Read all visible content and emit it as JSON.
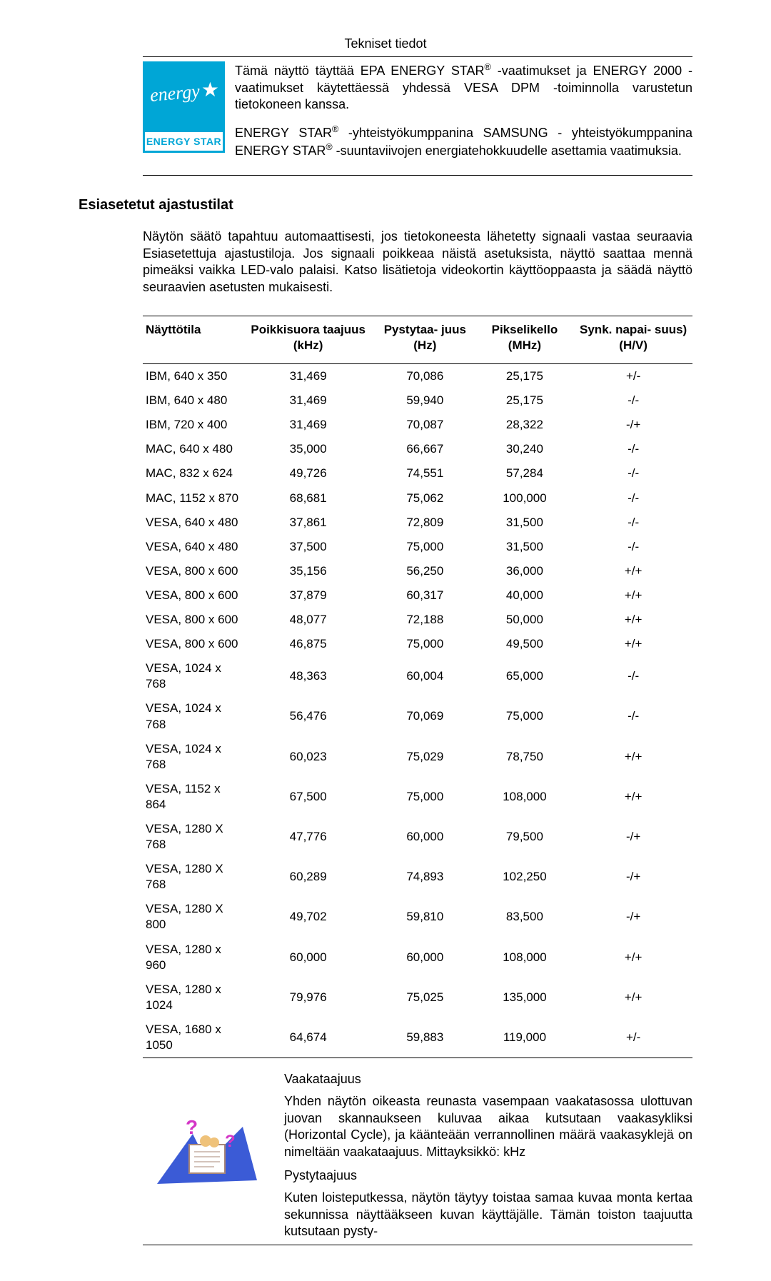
{
  "page_header": "Tekniset tiedot",
  "energy_logo": {
    "script": "energy",
    "band": "ENERGY STAR",
    "bg_color": "#00a6d6"
  },
  "top_paragraph_1": "Tämä näyttö täyttää EPA ENERGY STAR® -vaatimukset ja ENERGY 2000 -vaatimukset käytettäessä yhdessä VESA DPM -toiminnolla varustetun tietokoneen kanssa.",
  "top_paragraph_2": "ENERGY STAR® -yhteistyökumppanina SAMSUNG - yhteistyökumppanina ENERGY STAR® -suuntaviivojen energiatehokkuudelle asettamia vaatimuksia.",
  "section_heading": "Esiasetetut ajastustilat",
  "intro_text": "Näytön säätö tapahtuu automaattisesti, jos tietokoneesta lähetetty signaali vastaa seuraavia Esiasetettuja ajastustiloja. Jos signaali poikkeaa näistä asetuksista, näyttö saattaa mennä pimeäksi vaikka LED-valo palaisi. Katso lisätietoja videokortin käyttöoppaasta ja säädä näyttö seuraavien asetusten mukaisesti.",
  "timing_table": {
    "columns": [
      "Näyttötila",
      "Poikkisuora taajuus (kHz)",
      "Pystytaa- juus (Hz)",
      "Pikselikello (MHz)",
      "Synk. napai- suus) (H/V)"
    ],
    "rows": [
      [
        "IBM, 640 x 350",
        "31,469",
        "70,086",
        "25,175",
        "+/-"
      ],
      [
        "IBM, 640 x 480",
        "31,469",
        "59,940",
        "25,175",
        "-/-"
      ],
      [
        "IBM, 720 x 400",
        "31,469",
        "70,087",
        "28,322",
        "-/+"
      ],
      [
        "MAC, 640 x 480",
        "35,000",
        "66,667",
        "30,240",
        "-/-"
      ],
      [
        "MAC, 832 x 624",
        "49,726",
        "74,551",
        "57,284",
        "-/-"
      ],
      [
        "MAC, 1152 x 870",
        "68,681",
        "75,062",
        "100,000",
        "-/-"
      ],
      [
        "VESA, 640 x 480",
        "37,861",
        "72,809",
        "31,500",
        "-/-"
      ],
      [
        "VESA, 640 x 480",
        "37,500",
        "75,000",
        "31,500",
        "-/-"
      ],
      [
        "VESA, 800 x 600",
        "35,156",
        "56,250",
        "36,000",
        "+/+"
      ],
      [
        "VESA, 800 x 600",
        "37,879",
        "60,317",
        "40,000",
        "+/+"
      ],
      [
        "VESA, 800 x 600",
        "48,077",
        "72,188",
        "50,000",
        "+/+"
      ],
      [
        "VESA, 800 x 600",
        "46,875",
        "75,000",
        "49,500",
        "+/+"
      ],
      [
        "VESA, 1024 x 768",
        "48,363",
        "60,004",
        "65,000",
        "-/-"
      ],
      [
        "VESA, 1024 x 768",
        "56,476",
        "70,069",
        "75,000",
        "-/-"
      ],
      [
        "VESA, 1024 x 768",
        "60,023",
        "75,029",
        "78,750",
        "+/+"
      ],
      [
        "VESA, 1152 x 864",
        "67,500",
        "75,000",
        "108,000",
        "+/+"
      ],
      [
        "VESA, 1280 X 768",
        "47,776",
        "60,000",
        "79,500",
        "-/+"
      ],
      [
        "VESA,  1280 X 768",
        "60,289",
        "74,893",
        "102,250",
        "-/+"
      ],
      [
        "VESA,  1280 X 800",
        "49,702",
        "59,810",
        "83,500",
        "-/+"
      ],
      [
        "VESA, 1280 x 960",
        "60,000",
        "60,000",
        "108,000",
        "+/+"
      ],
      [
        "VESA, 1280 x 1024",
        "79,976",
        "75,025",
        "135,000",
        "+/+"
      ],
      [
        "VESA, 1680 x 1050",
        "64,674",
        "59,883",
        "119,000",
        "+/-"
      ]
    ]
  },
  "bottom": {
    "sub1": "Vaakataajuus",
    "para1": "Yhden näytön oikeasta reunasta vasempaan vaakatasossa ulottuvan juovan skannaukseen kuluvaa aikaa kutsutaan vaakasykliksi (Horizontal Cycle), ja käänteään verrannollinen määrä vaakasyklejä on nimeltään vaakataajuus. Mittayksikkö: kHz",
    "sub2": "Pystytaajuus",
    "para2": "Kuten loisteputkessa, näytön täytyy toistaa samaa kuvaa monta kertaa sekunnissa näyttääkseen kuvan käyttäjälle. Tämän toiston taajuutta kutsutaan pysty-"
  }
}
